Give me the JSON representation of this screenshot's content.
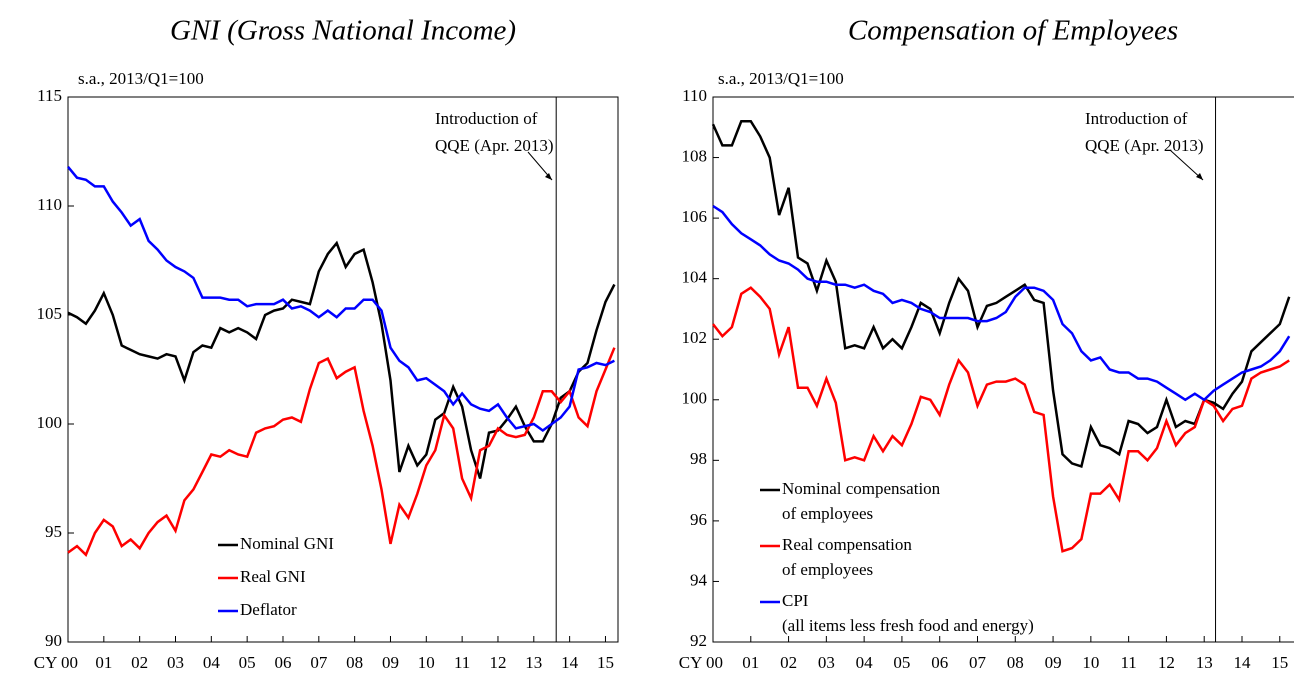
{
  "chart_data": [
    {
      "type": "line",
      "title": "GNI (Gross National Income)",
      "subtitle": "s.a., 2013/Q1=100",
      "annotation": "Introduction of\nQQE (Apr. 2013)",
      "vline": 54.5,
      "categories": [
        "CY 00",
        null,
        null,
        null,
        "01",
        null,
        null,
        null,
        "02",
        null,
        null,
        null,
        "03",
        null,
        null,
        null,
        "04",
        null,
        null,
        null,
        "05",
        null,
        null,
        null,
        "06",
        null,
        null,
        null,
        "07",
        null,
        null,
        null,
        "08",
        null,
        null,
        null,
        "09",
        null,
        null,
        null,
        "10",
        null,
        null,
        null,
        "11",
        null,
        null,
        null,
        "12",
        null,
        null,
        null,
        "13",
        null,
        null,
        null,
        "14",
        null,
        null,
        null,
        "15",
        null
      ],
      "ylim": [
        90,
        115
      ],
      "yticks": [
        90,
        95,
        100,
        105,
        110,
        115
      ],
      "grid": false,
      "legend": "lower left",
      "series": [
        {
          "name": "Nominal GNI",
          "color": "#000000",
          "values": [
            105.1,
            104.9,
            104.6,
            105.2,
            106.0,
            105.0,
            103.6,
            103.4,
            103.2,
            103.1,
            103.0,
            103.2,
            103.1,
            102.0,
            103.3,
            103.6,
            103.5,
            104.4,
            104.2,
            104.4,
            104.2,
            103.9,
            105.0,
            105.2,
            105.3,
            105.7,
            105.6,
            105.5,
            107.0,
            107.8,
            108.3,
            107.2,
            107.8,
            108.0,
            106.5,
            104.6,
            102.0,
            97.8,
            99.0,
            98.1,
            98.6,
            100.2,
            100.5,
            101.7,
            100.8,
            98.8,
            97.5,
            99.6,
            99.7,
            100.2,
            100.8,
            99.9,
            99.2,
            99.2,
            100.0,
            101.2,
            101.5,
            102.4,
            102.8,
            104.3,
            105.6,
            106.4
          ]
        },
        {
          "name": "Real GNI",
          "color": "#ff0000",
          "values": [
            94.1,
            94.4,
            94.0,
            95.0,
            95.6,
            95.3,
            94.4,
            94.7,
            94.3,
            95.0,
            95.5,
            95.8,
            95.1,
            96.5,
            97.0,
            97.8,
            98.6,
            98.5,
            98.8,
            98.6,
            98.5,
            99.6,
            99.8,
            99.9,
            100.2,
            100.3,
            100.1,
            101.6,
            102.8,
            103.0,
            102.1,
            102.4,
            102.6,
            100.6,
            99.0,
            97.0,
            94.5,
            96.3,
            95.7,
            96.8,
            98.1,
            98.8,
            100.4,
            99.8,
            97.5,
            96.6,
            98.8,
            99.0,
            99.8,
            99.5,
            99.4,
            99.5,
            100.3,
            101.5,
            101.5,
            101.0,
            101.5,
            100.3,
            99.9,
            101.5,
            102.5,
            103.5
          ]
        },
        {
          "name": "Deflator",
          "color": "#0000ff",
          "values": [
            111.8,
            111.3,
            111.2,
            110.9,
            110.9,
            110.2,
            109.7,
            109.1,
            109.4,
            108.4,
            108.0,
            107.5,
            107.2,
            107.0,
            106.7,
            105.8,
            105.8,
            105.8,
            105.7,
            105.7,
            105.4,
            105.5,
            105.5,
            105.5,
            105.7,
            105.3,
            105.4,
            105.2,
            104.9,
            105.2,
            104.9,
            105.3,
            105.3,
            105.7,
            105.7,
            105.2,
            103.5,
            102.9,
            102.6,
            102.0,
            102.1,
            101.8,
            101.5,
            100.9,
            101.4,
            100.9,
            100.7,
            100.6,
            100.9,
            100.3,
            99.8,
            99.9,
            100.0,
            99.7,
            100.0,
            100.3,
            100.8,
            102.5,
            102.6,
            102.8,
            102.7,
            102.9
          ]
        }
      ]
    },
    {
      "type": "line",
      "title": "Compensation of Employees",
      "subtitle": "s.a., 2013/Q1=100",
      "annotation": "Introduction of\nQQE (Apr. 2013)",
      "vline": 53.2,
      "categories": [
        "CY 00",
        null,
        null,
        null,
        "01",
        null,
        null,
        null,
        "02",
        null,
        null,
        null,
        "03",
        null,
        null,
        null,
        "04",
        null,
        null,
        null,
        "05",
        null,
        null,
        null,
        "06",
        null,
        null,
        null,
        "07",
        null,
        null,
        null,
        "08",
        null,
        null,
        null,
        "09",
        null,
        null,
        null,
        "10",
        null,
        null,
        null,
        "11",
        null,
        null,
        null,
        "12",
        null,
        null,
        null,
        "13",
        null,
        null,
        null,
        "14",
        null,
        null,
        null,
        "15",
        null
      ],
      "ylim": [
        92,
        110
      ],
      "yticks": [
        92,
        94,
        96,
        98,
        100,
        102,
        104,
        106,
        108,
        110
      ],
      "grid": false,
      "legend": "lower left",
      "series": [
        {
          "name": "Nominal compensation\nof employees",
          "color": "#000000",
          "values": [
            109.1,
            108.4,
            108.4,
            109.2,
            109.2,
            108.7,
            108.0,
            106.1,
            107.0,
            104.7,
            104.5,
            103.6,
            104.6,
            103.9,
            101.7,
            101.8,
            101.7,
            102.4,
            101.7,
            102.0,
            101.7,
            102.4,
            103.2,
            103.0,
            102.2,
            103.2,
            104.0,
            103.6,
            102.4,
            103.1,
            103.2,
            103.4,
            103.6,
            103.8,
            103.3,
            103.2,
            100.3,
            98.2,
            97.9,
            97.8,
            99.1,
            98.5,
            98.4,
            98.2,
            99.3,
            99.2,
            98.9,
            99.1,
            100.0,
            99.1,
            99.3,
            99.2,
            100.0,
            99.9,
            99.7,
            100.2,
            100.6,
            101.6,
            101.9,
            102.2,
            102.5,
            103.4
          ]
        },
        {
          "name": "Real compensation\nof employees",
          "color": "#ff0000",
          "values": [
            102.5,
            102.1,
            102.4,
            103.5,
            103.7,
            103.4,
            103.0,
            101.5,
            102.4,
            100.4,
            100.4,
            99.8,
            100.7,
            99.9,
            98.0,
            98.1,
            98.0,
            98.8,
            98.3,
            98.8,
            98.5,
            99.2,
            100.1,
            100.0,
            99.5,
            100.5,
            101.3,
            100.9,
            99.8,
            100.5,
            100.6,
            100.6,
            100.7,
            100.5,
            99.6,
            99.5,
            96.8,
            95.0,
            95.1,
            95.4,
            96.9,
            96.9,
            97.2,
            96.7,
            98.3,
            98.3,
            98.0,
            98.4,
            99.3,
            98.5,
            98.9,
            99.1,
            100.0,
            99.8,
            99.3,
            99.7,
            99.8,
            100.7,
            100.9,
            101.0,
            101.1,
            101.3
          ]
        },
        {
          "name": "CPI\n(all items less fresh food and energy)",
          "color": "#0000ff",
          "values": [
            106.4,
            106.2,
            105.8,
            105.5,
            105.3,
            105.1,
            104.8,
            104.6,
            104.5,
            104.3,
            104.0,
            103.9,
            103.9,
            103.8,
            103.8,
            103.7,
            103.8,
            103.6,
            103.5,
            103.2,
            103.3,
            103.2,
            103.0,
            102.9,
            102.7,
            102.7,
            102.7,
            102.7,
            102.6,
            102.6,
            102.7,
            102.9,
            103.4,
            103.7,
            103.7,
            103.6,
            103.3,
            102.5,
            102.2,
            101.6,
            101.3,
            101.4,
            101.0,
            100.9,
            100.9,
            100.7,
            100.7,
            100.6,
            100.4,
            100.2,
            100.0,
            100.2,
            100.0,
            100.3,
            100.5,
            100.7,
            100.9,
            101.0,
            101.1,
            101.3,
            101.6,
            102.1
          ]
        }
      ]
    }
  ]
}
